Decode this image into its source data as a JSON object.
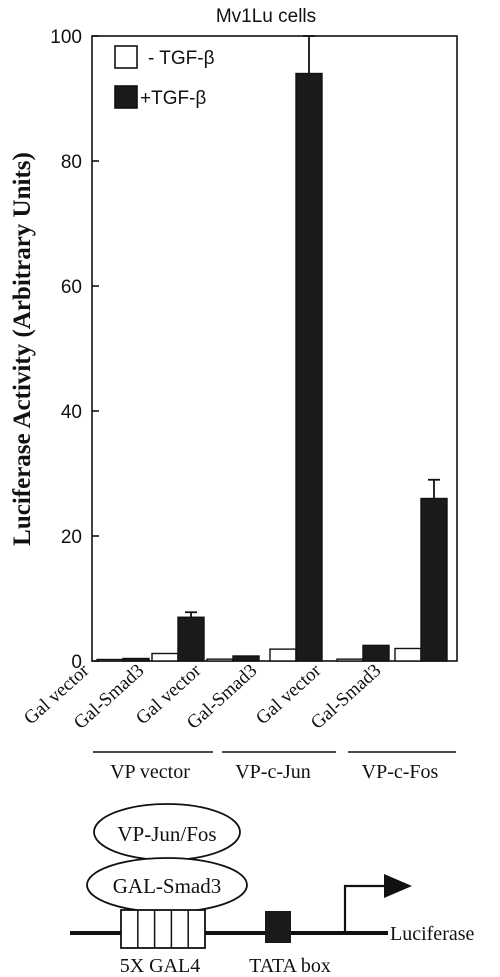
{
  "chart_data": {
    "type": "bar",
    "title": "Mv1Lu cells",
    "ylabel": "Luciferase Activity (Arbitrary Units)",
    "xlabel": "",
    "ylim": [
      0,
      100
    ],
    "yticks": [
      0,
      20,
      40,
      60,
      80,
      100
    ],
    "grid": false,
    "legend_position": "top-left",
    "categories": [
      "Gal vector",
      "Gal-Smad3",
      "Gal vector",
      "Gal-Smad3",
      "Gal vector",
      "Gal-Smad3"
    ],
    "groups": [
      {
        "label": "VP vector",
        "categories": [
          0,
          1
        ]
      },
      {
        "label": "VP-c-Jun",
        "categories": [
          2,
          3
        ]
      },
      {
        "label": "VP-c-Fos",
        "categories": [
          4,
          5
        ]
      }
    ],
    "series": [
      {
        "name": "- TGF-β",
        "fill": "#ffffff",
        "values": [
          0.2,
          1.2,
          0.3,
          1.9,
          0.3,
          2.0
        ],
        "errors": [
          0,
          0,
          0,
          0,
          0,
          0
        ]
      },
      {
        "name": "+TGF-β",
        "fill": "#1a1a1a",
        "values": [
          0.4,
          7.0,
          0.8,
          94.0,
          2.5,
          26.0
        ],
        "errors": [
          0,
          0.8,
          0,
          6.0,
          0,
          3.0
        ]
      }
    ]
  },
  "diagram": {
    "activator_label": "VP-Jun/Fos",
    "binder_label": "GAL-Smad3",
    "gal4_label": "5X GAL4",
    "tata_label": "TATA box",
    "reporter_label": "Luciferase"
  }
}
